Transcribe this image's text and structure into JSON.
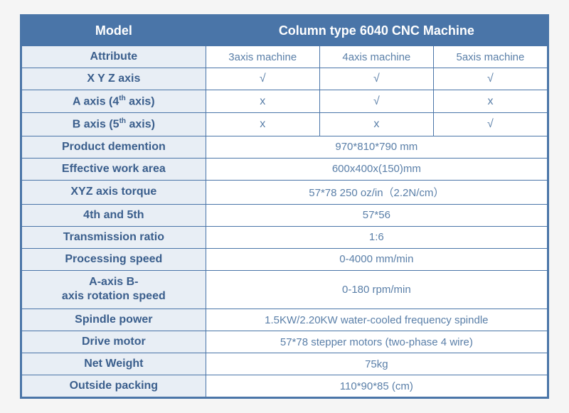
{
  "type": "table",
  "colors": {
    "header_bg": "#4a75a8",
    "header_text": "#ffffff",
    "label_bg": "#e8eef5",
    "label_text": "#3a5e8c",
    "value_text": "#5a7fa8",
    "border": "#4a75a8",
    "background": "#ffffff"
  },
  "typography": {
    "font_family": "Arial, sans-serif",
    "header_fontsize": 18,
    "label_fontsize": 16,
    "value_fontsize": 15,
    "header_weight": "bold",
    "label_weight": "bold"
  },
  "layout": {
    "col1_width": "35%",
    "col_rest_width": "21.66%"
  },
  "header": {
    "model": "Model",
    "title": "Column type 6040 CNC Machine"
  },
  "subheader": {
    "attribute": "Attribute",
    "c3": "3axis machine",
    "c4": "4axis machine",
    "c5": "5axis machine"
  },
  "rows3col": {
    "xyz": {
      "label": "X Y Z axis",
      "v1": "√",
      "v2": "√",
      "v3": "√"
    },
    "a_axis": {
      "label_html": "A axis (4<sup>th</sup> axis)",
      "v1": "x",
      "v2": "√",
      "v3": "x"
    },
    "b_axis": {
      "label_html": "B axis (5<sup>th</sup> axis)",
      "v1": "x",
      "v2": "x",
      "v3": "√"
    }
  },
  "rows1col": {
    "dimention": {
      "label": "Product demention",
      "val": "970*810*790 mm"
    },
    "workarea": {
      "label": "Effective work area",
      "val": "600x400x(150)mm"
    },
    "xyztorque": {
      "label": "XYZ axis torque",
      "val": "57*78 250 oz/in（2.2N/cm）"
    },
    "fourth5th": {
      "label": "4th and 5th",
      "val": "57*56"
    },
    "trans": {
      "label": "Transmission ratio",
      "val": "1:6"
    },
    "proc": {
      "label": "Processing speed",
      "val": "0-4000 mm/min"
    },
    "abrot": {
      "label_html": "A-axis B-<br>axis rotation speed",
      "val": "0-180 rpm/min"
    },
    "spindle": {
      "label": "Spindle power",
      "val": "1.5KW/2.20KW water-cooled frequency spindle"
    },
    "drive": {
      "label": "Drive motor",
      "val": "57*78 stepper motors (two-phase 4 wire)"
    },
    "netw": {
      "label": "Net Weight",
      "val": "75kg"
    },
    "pack": {
      "label": "Outside packing",
      "val": "110*90*85 (cm)"
    }
  }
}
